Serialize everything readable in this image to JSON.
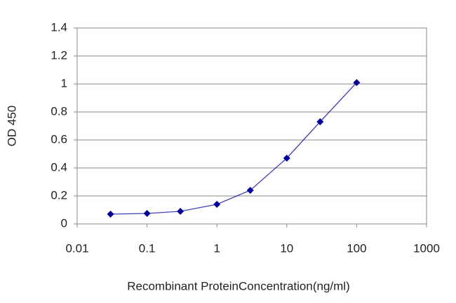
{
  "chart_data": {
    "type": "line",
    "x_label": "Recombinant ProteinConcentration(ng/ml)",
    "y_label": "OD 450",
    "x": [
      0.03,
      0.1,
      0.3,
      1,
      3,
      10,
      30,
      100
    ],
    "series": [
      {
        "name": "OD 450",
        "color": "#000099",
        "values": [
          0.07,
          0.075,
          0.09,
          0.14,
          0.24,
          0.47,
          0.73,
          1.01
        ]
      }
    ],
    "xscale": "log",
    "xlim": [
      0.01,
      1000
    ],
    "xticks": [
      0.01,
      0.1,
      1,
      10,
      100,
      1000
    ],
    "ylim": [
      0,
      1.4
    ],
    "yticks": [
      0,
      0.2,
      0.4,
      0.6,
      0.8,
      1,
      1.2,
      1.4
    ],
    "grid": true
  }
}
